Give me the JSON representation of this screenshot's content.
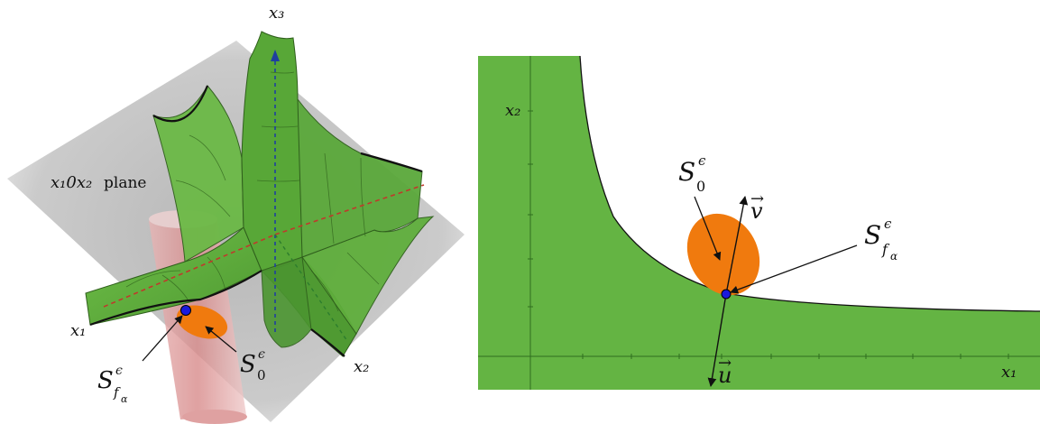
{
  "left_panel": {
    "axis_x1": "x₁",
    "axis_x2": "x₂",
    "axis_x3": "x₃",
    "plane_label_math": "x₁0x₂",
    "plane_label_word": "plane",
    "label_sf_main": "S",
    "label_sf_sup": "ϵ",
    "label_sf_sub": "f",
    "label_sf_subsub": "α",
    "label_s0_main": "S",
    "label_s0_sup": "ϵ",
    "label_s0_sub": "0"
  },
  "right_panel": {
    "axis_x1": "x₁",
    "axis_x2": "x₂",
    "vec_v": "v",
    "vec_u": "u",
    "label_s0_main": "S",
    "label_s0_sup": "ϵ",
    "label_s0_sub": "0",
    "label_sf_main": "S",
    "label_sf_sup": "ϵ",
    "label_sf_sub": "f",
    "label_sf_subsub": "α"
  },
  "colors": {
    "surface_green": "#5fae3c",
    "surface_dark": "#3d7f24",
    "plane_gray": "#bdbdbd",
    "cylinder_red": "#d98a8a",
    "ellipse_orange": "#f07a0e",
    "point_blue": "#1a1adc"
  }
}
